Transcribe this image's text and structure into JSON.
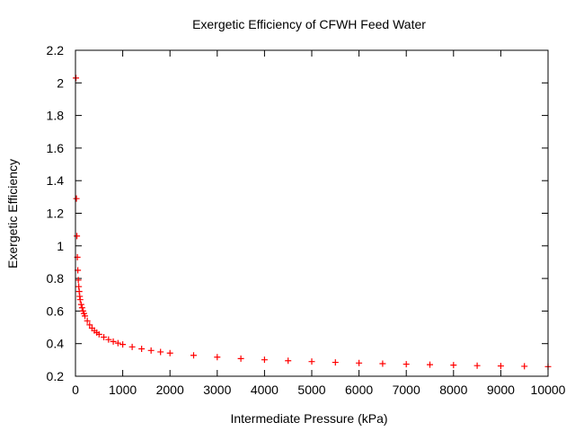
{
  "chart_data": {
    "type": "scatter",
    "title": "Exergetic Efficiency of CFWH Feed Water",
    "xlabel": "Intermediate Pressure (kPa)",
    "ylabel": "Exergetic Efficiency",
    "xlim": [
      0,
      10000
    ],
    "ylim": [
      0.2,
      2.2
    ],
    "x_ticks": [
      0,
      1000,
      2000,
      3000,
      4000,
      5000,
      6000,
      7000,
      8000,
      9000,
      10000
    ],
    "x_tick_labels": [
      "0",
      "1000",
      "2000",
      "3000",
      "4000",
      "5000",
      "6000",
      "7000",
      "8000",
      "9000",
      "10000"
    ],
    "y_ticks": [
      0.2,
      0.4,
      0.6,
      0.8,
      1.0,
      1.2,
      1.4,
      1.6,
      1.8,
      2.0,
      2.2
    ],
    "y_tick_labels": [
      "0.2",
      "0.4",
      "0.6",
      "0.8",
      "1",
      "1.2",
      "1.4",
      "1.6",
      "1.8",
      "2",
      "2.2"
    ],
    "grid": false,
    "legend": "none",
    "marker": "plus",
    "color": "#ff0000",
    "series": [
      {
        "x": [
          10,
          20,
          30,
          40,
          50,
          60,
          70,
          80,
          90,
          100,
          120,
          140,
          160,
          180,
          200,
          250,
          300,
          350,
          400,
          450,
          500,
          600,
          700,
          800,
          900,
          1000,
          1200,
          1400,
          1600,
          1800,
          2000,
          2500,
          3000,
          3500,
          4000,
          4500,
          5000,
          5500,
          6000,
          6500,
          7000,
          7500,
          8000,
          8500,
          9000,
          9500,
          10000
        ],
        "y": [
          2.03,
          1.29,
          1.06,
          0.93,
          0.85,
          0.79,
          0.75,
          0.72,
          0.69,
          0.67,
          0.64,
          0.62,
          0.6,
          0.585,
          0.57,
          0.54,
          0.515,
          0.495,
          0.48,
          0.468,
          0.457,
          0.44,
          0.425,
          0.413,
          0.403,
          0.395,
          0.38,
          0.368,
          0.358,
          0.349,
          0.342,
          0.328,
          0.317,
          0.308,
          0.301,
          0.295,
          0.29,
          0.285,
          0.281,
          0.277,
          0.274,
          0.271,
          0.268,
          0.265,
          0.263,
          0.261,
          0.259
        ]
      }
    ]
  }
}
